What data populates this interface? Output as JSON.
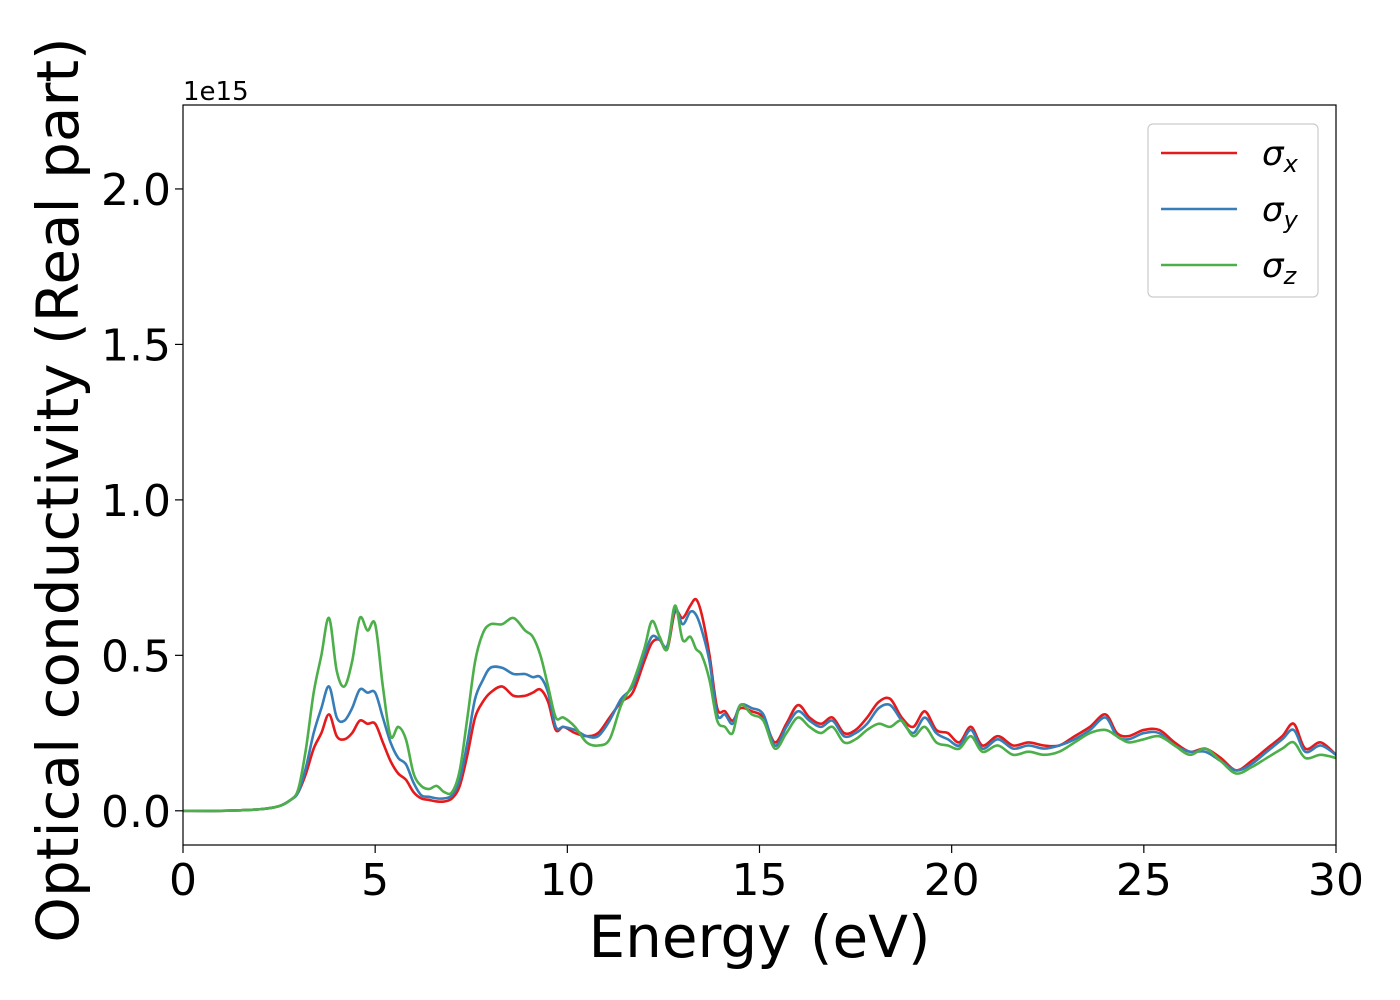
{
  "chart_data": {
    "type": "line",
    "xlabel": "Energy (eV)",
    "ylabel": "Optical conductivity (Real part)",
    "offset_text": "1e15",
    "xlim": [
      0,
      30
    ],
    "ylim": [
      -0.11,
      2.27
    ],
    "y_scale_exponent": 15,
    "x_ticks": [
      0,
      5,
      10,
      15,
      20,
      25,
      30
    ],
    "x_tick_labels": [
      "0",
      "5",
      "10",
      "15",
      "20",
      "25",
      "30"
    ],
    "y_ticks": [
      0.0,
      0.5,
      1.0,
      1.5,
      2.0
    ],
    "y_tick_labels": [
      "0.0",
      "0.5",
      "1.0",
      "1.5",
      "2.0"
    ],
    "grid": false,
    "legend_position": "top-right",
    "series": [
      {
        "name": "σx",
        "symbol": "σ",
        "subscript": "x",
        "color": "#e41a1c",
        "x": [
          0,
          1,
          2,
          2.5,
          2.8,
          3.0,
          3.2,
          3.4,
          3.6,
          3.8,
          4.0,
          4.2,
          4.4,
          4.6,
          4.8,
          5.0,
          5.2,
          5.4,
          5.6,
          5.8,
          6.0,
          6.2,
          6.4,
          6.6,
          6.8,
          7.0,
          7.2,
          7.4,
          7.6,
          7.8,
          8.0,
          8.3,
          8.6,
          8.9,
          9.1,
          9.3,
          9.5,
          9.7,
          9.9,
          10.2,
          10.5,
          10.8,
          11.1,
          11.4,
          11.7,
          12.0,
          12.2,
          12.4,
          12.6,
          12.8,
          13.0,
          13.2,
          13.35,
          13.5,
          13.7,
          13.9,
          14.1,
          14.3,
          14.5,
          14.8,
          15.1,
          15.4,
          15.7,
          16.0,
          16.3,
          16.6,
          16.9,
          17.2,
          17.5,
          17.8,
          18.1,
          18.4,
          18.7,
          19.0,
          19.3,
          19.6,
          19.9,
          20.2,
          20.5,
          20.8,
          21.2,
          21.6,
          22.0,
          22.4,
          22.8,
          23.2,
          23.6,
          24.0,
          24.3,
          24.6,
          25.0,
          25.4,
          25.8,
          26.2,
          26.6,
          27.0,
          27.4,
          27.8,
          28.2,
          28.6,
          28.9,
          29.2,
          29.6,
          30.0
        ],
        "y": [
          0.0,
          0.0,
          0.005,
          0.015,
          0.035,
          0.06,
          0.12,
          0.2,
          0.25,
          0.31,
          0.24,
          0.23,
          0.25,
          0.29,
          0.28,
          0.28,
          0.22,
          0.16,
          0.12,
          0.1,
          0.06,
          0.04,
          0.035,
          0.03,
          0.03,
          0.04,
          0.08,
          0.18,
          0.3,
          0.35,
          0.38,
          0.4,
          0.37,
          0.37,
          0.38,
          0.39,
          0.35,
          0.26,
          0.27,
          0.25,
          0.24,
          0.25,
          0.3,
          0.35,
          0.38,
          0.48,
          0.54,
          0.55,
          0.52,
          0.64,
          0.62,
          0.66,
          0.68,
          0.63,
          0.5,
          0.33,
          0.32,
          0.29,
          0.33,
          0.32,
          0.3,
          0.22,
          0.28,
          0.34,
          0.3,
          0.28,
          0.3,
          0.25,
          0.26,
          0.3,
          0.35,
          0.36,
          0.3,
          0.27,
          0.32,
          0.26,
          0.25,
          0.22,
          0.27,
          0.21,
          0.24,
          0.21,
          0.22,
          0.21,
          0.21,
          0.24,
          0.27,
          0.31,
          0.25,
          0.24,
          0.26,
          0.26,
          0.22,
          0.19,
          0.2,
          0.17,
          0.13,
          0.16,
          0.2,
          0.24,
          0.28,
          0.2,
          0.22,
          0.18
        ]
      },
      {
        "name": "σy",
        "symbol": "σ",
        "subscript": "y",
        "color": "#377eb8",
        "x": [
          0,
          1,
          2,
          2.5,
          2.8,
          3.0,
          3.2,
          3.4,
          3.6,
          3.8,
          4.0,
          4.2,
          4.4,
          4.6,
          4.8,
          5.0,
          5.2,
          5.4,
          5.6,
          5.8,
          6.0,
          6.2,
          6.4,
          6.6,
          6.8,
          7.0,
          7.2,
          7.4,
          7.6,
          7.8,
          8.0,
          8.3,
          8.6,
          8.9,
          9.1,
          9.3,
          9.5,
          9.7,
          9.9,
          10.2,
          10.5,
          10.8,
          11.1,
          11.4,
          11.7,
          12.0,
          12.2,
          12.4,
          12.6,
          12.8,
          13.0,
          13.2,
          13.35,
          13.5,
          13.7,
          13.9,
          14.1,
          14.3,
          14.5,
          14.8,
          15.1,
          15.4,
          15.7,
          16.0,
          16.3,
          16.6,
          16.9,
          17.2,
          17.5,
          17.8,
          18.1,
          18.4,
          18.7,
          19.0,
          19.3,
          19.6,
          19.9,
          20.2,
          20.5,
          20.8,
          21.2,
          21.6,
          22.0,
          22.4,
          22.8,
          23.2,
          23.6,
          24.0,
          24.3,
          24.6,
          25.0,
          25.4,
          25.8,
          26.2,
          26.6,
          27.0,
          27.4,
          27.8,
          28.2,
          28.6,
          28.9,
          29.2,
          29.6,
          30.0
        ],
        "y": [
          0.0,
          0.0,
          0.005,
          0.015,
          0.035,
          0.06,
          0.14,
          0.25,
          0.33,
          0.4,
          0.3,
          0.29,
          0.33,
          0.39,
          0.38,
          0.38,
          0.3,
          0.22,
          0.17,
          0.15,
          0.09,
          0.05,
          0.045,
          0.04,
          0.04,
          0.05,
          0.1,
          0.22,
          0.36,
          0.42,
          0.46,
          0.46,
          0.44,
          0.44,
          0.43,
          0.43,
          0.38,
          0.27,
          0.27,
          0.26,
          0.24,
          0.24,
          0.29,
          0.36,
          0.4,
          0.5,
          0.56,
          0.55,
          0.53,
          0.65,
          0.6,
          0.64,
          0.63,
          0.58,
          0.48,
          0.31,
          0.31,
          0.28,
          0.34,
          0.33,
          0.31,
          0.21,
          0.27,
          0.32,
          0.29,
          0.27,
          0.29,
          0.24,
          0.25,
          0.28,
          0.33,
          0.34,
          0.29,
          0.25,
          0.3,
          0.25,
          0.23,
          0.21,
          0.26,
          0.2,
          0.23,
          0.2,
          0.21,
          0.2,
          0.21,
          0.23,
          0.26,
          0.3,
          0.24,
          0.23,
          0.25,
          0.25,
          0.21,
          0.19,
          0.19,
          0.16,
          0.13,
          0.15,
          0.19,
          0.23,
          0.26,
          0.19,
          0.21,
          0.18
        ]
      },
      {
        "name": "σz",
        "symbol": "σ",
        "subscript": "z",
        "color": "#4daf4a",
        "x": [
          0,
          1,
          2,
          2.5,
          2.8,
          3.0,
          3.2,
          3.4,
          3.6,
          3.8,
          4.0,
          4.2,
          4.4,
          4.6,
          4.8,
          5.0,
          5.2,
          5.4,
          5.6,
          5.8,
          6.0,
          6.2,
          6.4,
          6.6,
          6.8,
          7.0,
          7.2,
          7.4,
          7.6,
          7.8,
          8.0,
          8.3,
          8.6,
          8.9,
          9.1,
          9.3,
          9.5,
          9.7,
          9.9,
          10.2,
          10.5,
          10.8,
          11.1,
          11.4,
          11.7,
          12.0,
          12.2,
          12.4,
          12.6,
          12.8,
          13.0,
          13.2,
          13.35,
          13.5,
          13.7,
          13.9,
          14.1,
          14.3,
          14.5,
          14.8,
          15.1,
          15.4,
          15.7,
          16.0,
          16.3,
          16.6,
          16.9,
          17.2,
          17.5,
          17.8,
          18.1,
          18.4,
          18.7,
          19.0,
          19.3,
          19.6,
          19.9,
          20.2,
          20.5,
          20.8,
          21.2,
          21.6,
          22.0,
          22.4,
          22.8,
          23.2,
          23.6,
          24.0,
          24.3,
          24.6,
          25.0,
          25.4,
          25.8,
          26.2,
          26.6,
          27.0,
          27.4,
          27.8,
          28.2,
          28.6,
          28.9,
          29.2,
          29.6,
          30.0
        ],
        "y": [
          0.0,
          0.0,
          0.005,
          0.015,
          0.035,
          0.07,
          0.2,
          0.38,
          0.5,
          0.62,
          0.45,
          0.4,
          0.48,
          0.62,
          0.58,
          0.6,
          0.4,
          0.24,
          0.27,
          0.23,
          0.12,
          0.08,
          0.07,
          0.08,
          0.06,
          0.06,
          0.13,
          0.3,
          0.48,
          0.57,
          0.6,
          0.6,
          0.62,
          0.58,
          0.56,
          0.5,
          0.4,
          0.3,
          0.3,
          0.27,
          0.22,
          0.21,
          0.23,
          0.34,
          0.41,
          0.52,
          0.61,
          0.56,
          0.52,
          0.66,
          0.55,
          0.56,
          0.52,
          0.5,
          0.42,
          0.29,
          0.27,
          0.25,
          0.34,
          0.31,
          0.29,
          0.2,
          0.25,
          0.3,
          0.27,
          0.25,
          0.27,
          0.22,
          0.23,
          0.26,
          0.28,
          0.27,
          0.29,
          0.24,
          0.27,
          0.22,
          0.21,
          0.2,
          0.24,
          0.19,
          0.21,
          0.18,
          0.19,
          0.18,
          0.19,
          0.22,
          0.25,
          0.26,
          0.24,
          0.22,
          0.23,
          0.24,
          0.21,
          0.18,
          0.2,
          0.16,
          0.12,
          0.14,
          0.17,
          0.2,
          0.22,
          0.17,
          0.18,
          0.17
        ]
      }
    ]
  }
}
